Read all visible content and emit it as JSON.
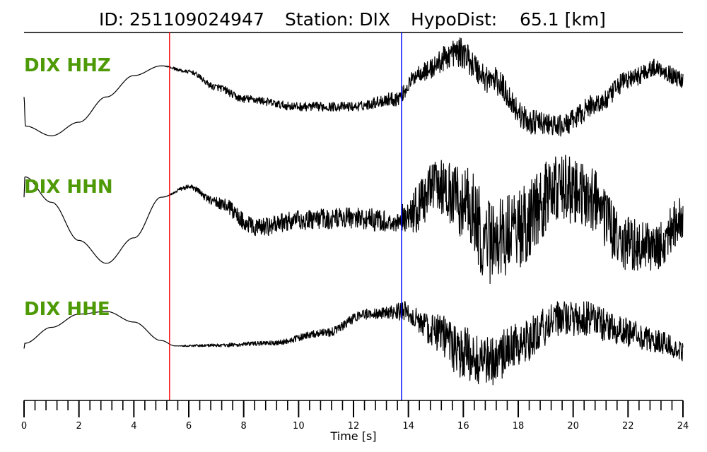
{
  "header": {
    "id_text": "ID: 251109024947",
    "station_text": "Station: DIX",
    "hypodist_text": "HypoDist:    65.1 [km]"
  },
  "colors": {
    "label": "#4e9a06",
    "trace": "#000000",
    "p_pick": "#ff0000",
    "s_pick": "#0000ff"
  },
  "chart_data": {
    "type": "line",
    "title": "ID: 251109024947   Station: DIX   HypoDist:    65.1 [km]",
    "xlabel": "Time [s]",
    "ylabel": "",
    "xlim": [
      0,
      24
    ],
    "x_ticks": [
      "0",
      "2",
      "4",
      "6",
      "8",
      "10",
      "12",
      "14",
      "16",
      "18",
      "20",
      "22",
      "24"
    ],
    "minor_tick_step": 0.4,
    "grid": false,
    "legend": "none",
    "picks": [
      {
        "phase": "P",
        "time": 5.3,
        "color": "#ff0000"
      },
      {
        "phase": "S",
        "time": 13.75,
        "color": "#0000ff"
      }
    ],
    "series": [
      {
        "name": "DIX HHZ",
        "label": "DIX HHZ",
        "envelope": [
          [
            0,
            0.05
          ],
          [
            0.05,
            -0.7
          ],
          [
            1,
            -0.95
          ],
          [
            2,
            -0.6
          ],
          [
            3,
            0.05
          ],
          [
            4,
            0.6
          ],
          [
            5,
            0.85
          ],
          [
            6,
            0.7
          ],
          [
            7,
            0.3
          ],
          [
            8,
            0.0
          ],
          [
            10,
            -0.2
          ],
          [
            12,
            -0.2
          ],
          [
            13.5,
            0.0
          ],
          [
            14.5,
            0.7
          ],
          [
            15.8,
            1.2
          ],
          [
            17,
            0.5
          ],
          [
            18.5,
            -0.6
          ],
          [
            19.5,
            -0.7
          ],
          [
            21,
            -0.1
          ],
          [
            22,
            0.5
          ],
          [
            23,
            0.8
          ],
          [
            24,
            0.5
          ]
        ],
        "noise": [
          [
            0,
            0
          ],
          [
            5,
            0
          ],
          [
            5.5,
            0.04
          ],
          [
            7.5,
            0.1
          ],
          [
            12,
            0.12
          ],
          [
            14,
            0.2
          ],
          [
            16,
            0.38
          ],
          [
            20,
            0.28
          ],
          [
            24,
            0.22
          ]
        ]
      },
      {
        "name": "DIX HHN",
        "label": "DIX HHN",
        "envelope": [
          [
            0,
            0.4
          ],
          [
            0.03,
            0.8
          ],
          [
            1,
            0.3
          ],
          [
            2,
            -0.45
          ],
          [
            3,
            -0.9
          ],
          [
            4,
            -0.4
          ],
          [
            5,
            0.4
          ],
          [
            6,
            0.6
          ],
          [
            7,
            0.3
          ],
          [
            8.5,
            -0.2
          ],
          [
            10,
            -0.05
          ],
          [
            12,
            0.0
          ],
          [
            13.5,
            -0.1
          ],
          [
            14,
            0.05
          ],
          [
            15,
            0.6
          ],
          [
            16,
            0.3
          ],
          [
            17,
            -0.5
          ],
          [
            18,
            -0.2
          ],
          [
            19.5,
            0.6
          ],
          [
            20.5,
            0.4
          ],
          [
            22,
            -0.5
          ],
          [
            23,
            -0.6
          ],
          [
            24,
            0.0
          ]
        ],
        "noise": [
          [
            0,
            0
          ],
          [
            5,
            0
          ],
          [
            6,
            0.05
          ],
          [
            8,
            0.18
          ],
          [
            13.5,
            0.22
          ],
          [
            14.5,
            0.5
          ],
          [
            17,
            0.85
          ],
          [
            20,
            0.65
          ],
          [
            24,
            0.45
          ]
        ]
      },
      {
        "name": "DIX HHE",
        "label": "DIX HHE",
        "envelope": [
          [
            0,
            -0.1
          ],
          [
            0.03,
            0.0
          ],
          [
            1,
            0.3
          ],
          [
            2,
            0.55
          ],
          [
            3,
            0.6
          ],
          [
            4,
            0.4
          ],
          [
            5,
            0.05
          ],
          [
            5.5,
            -0.05
          ],
          [
            7,
            -0.04
          ],
          [
            9,
            0.0
          ],
          [
            11,
            0.2
          ],
          [
            12.5,
            0.55
          ],
          [
            13.8,
            0.6
          ],
          [
            15,
            0.2
          ],
          [
            16,
            -0.2
          ],
          [
            17,
            -0.35
          ],
          [
            18,
            0.0
          ],
          [
            19.5,
            0.45
          ],
          [
            20.5,
            0.45
          ],
          [
            22,
            0.2
          ],
          [
            23,
            0.05
          ],
          [
            24,
            -0.15
          ]
        ],
        "noise": [
          [
            0,
            0
          ],
          [
            5.5,
            0
          ],
          [
            6,
            0.02
          ],
          [
            8,
            0.04
          ],
          [
            13,
            0.1
          ],
          [
            14,
            0.2
          ],
          [
            16,
            0.5
          ],
          [
            20,
            0.35
          ],
          [
            24,
            0.2
          ]
        ]
      }
    ]
  }
}
